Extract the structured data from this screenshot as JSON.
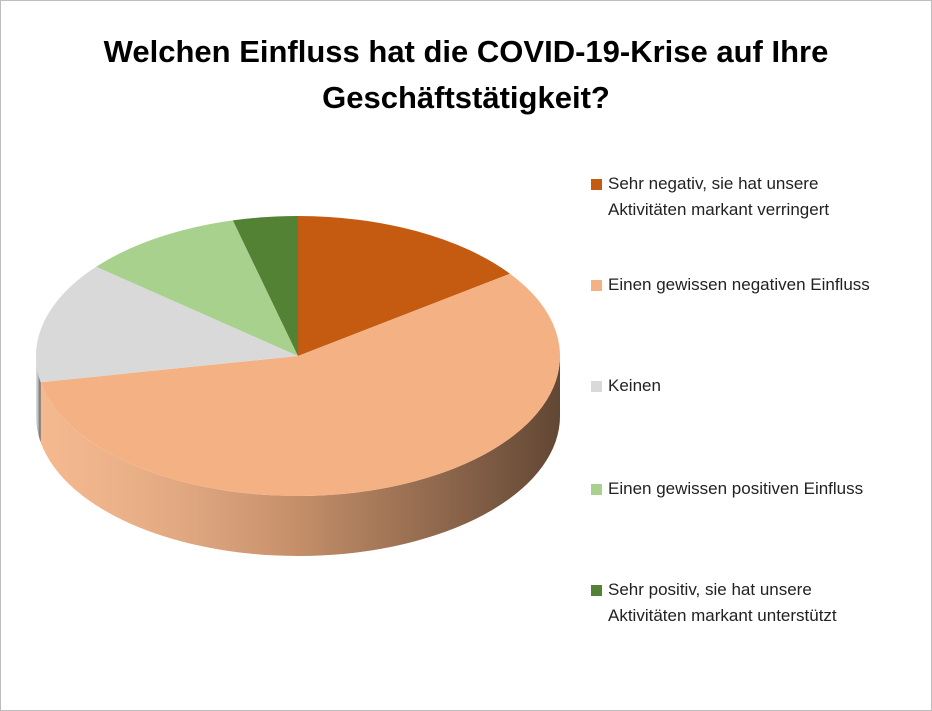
{
  "chart_data": {
    "type": "pie",
    "title": "Welchen Einfluss hat die COVID-19-Krise auf Ihre Geschäftstätigkeit?",
    "categories": [
      "Sehr negativ, sie hat unsere Aktivitäten markant verringert",
      "Einen gewissen negativen Einfluss",
      "Keinen",
      "Einen gewissen positiven Einfluss",
      "Sehr positiv, sie hat unsere Aktivitäten markant unterstützt"
    ],
    "values": [
      15,
      57,
      14,
      10,
      4
    ],
    "colors": [
      "#c55a11",
      "#f4b183",
      "#d9d9d9",
      "#a9d18e",
      "#548235"
    ],
    "legend": "right"
  }
}
